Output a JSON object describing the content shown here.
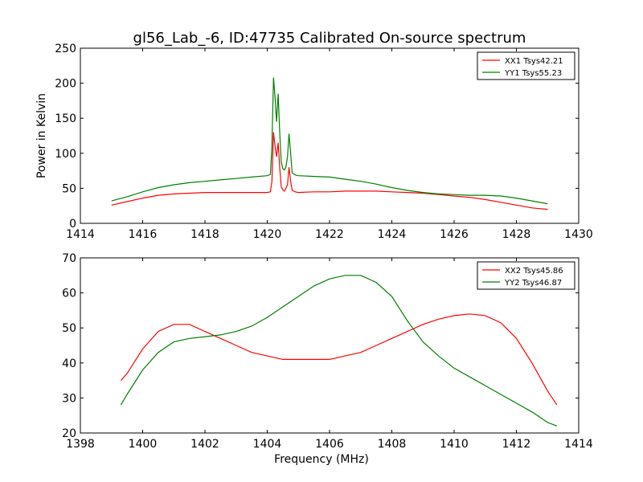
{
  "figure": {
    "title": "gl56_Lab_-6, ID:47735 Calibrated On-source spectrum"
  },
  "chart_data": [
    {
      "type": "line",
      "title": "gl56_Lab_-6, ID:47735 Calibrated On-source spectrum",
      "xlabel": "",
      "ylabel": "Power in Kelvin",
      "xlim": [
        1414,
        1430
      ],
      "ylim": [
        0,
        250
      ],
      "xticks": [
        1414,
        1416,
        1418,
        1420,
        1422,
        1424,
        1426,
        1428,
        1430
      ],
      "yticks": [
        0,
        50,
        100,
        150,
        200,
        250
      ],
      "grid": false,
      "legend": "top-right",
      "series": [
        {
          "name": "XX1 Tsys42.21",
          "color": "#ff0000",
          "x": [
            1415.0,
            1415.5,
            1416.0,
            1416.5,
            1417.0,
            1417.5,
            1418.0,
            1418.5,
            1419.0,
            1419.5,
            1420.0,
            1420.1,
            1420.15,
            1420.2,
            1420.25,
            1420.3,
            1420.35,
            1420.4,
            1420.45,
            1420.5,
            1420.55,
            1420.6,
            1420.65,
            1420.7,
            1420.75,
            1420.8,
            1420.9,
            1421.0,
            1421.5,
            1422.0,
            1422.5,
            1423.0,
            1423.5,
            1424.0,
            1424.5,
            1425.0,
            1425.5,
            1426.0,
            1426.5,
            1427.0,
            1427.5,
            1428.0,
            1428.5,
            1429.0
          ],
          "y": [
            26,
            31,
            36,
            40,
            42,
            43,
            44,
            44,
            44,
            44,
            44,
            45,
            60,
            130,
            110,
            95,
            115,
            80,
            52,
            48,
            46,
            50,
            55,
            80,
            60,
            47,
            45,
            44,
            45,
            45,
            46,
            46,
            46,
            45,
            44,
            43,
            41,
            39,
            37,
            34,
            30,
            26,
            22,
            20
          ]
        },
        {
          "name": "YY1 Tsys55.23",
          "color": "#008000",
          "x": [
            1415.0,
            1415.5,
            1416.0,
            1416.5,
            1417.0,
            1417.5,
            1418.0,
            1418.5,
            1419.0,
            1419.5,
            1420.0,
            1420.1,
            1420.15,
            1420.2,
            1420.25,
            1420.3,
            1420.35,
            1420.4,
            1420.45,
            1420.5,
            1420.55,
            1420.6,
            1420.65,
            1420.7,
            1420.75,
            1420.8,
            1420.9,
            1421.0,
            1421.5,
            1422.0,
            1422.5,
            1423.0,
            1423.5,
            1424.0,
            1424.5,
            1425.0,
            1425.5,
            1426.0,
            1426.5,
            1427.0,
            1427.5,
            1428.0,
            1428.5,
            1429.0
          ],
          "y": [
            32,
            38,
            45,
            51,
            55,
            58,
            60,
            62,
            64,
            66,
            68,
            70,
            110,
            208,
            180,
            145,
            185,
            130,
            88,
            78,
            76,
            80,
            95,
            128,
            100,
            72,
            69,
            68,
            67,
            66,
            63,
            60,
            56,
            51,
            47,
            44,
            42,
            41,
            40,
            40,
            39,
            36,
            32,
            28
          ]
        }
      ]
    },
    {
      "type": "line",
      "title": "",
      "xlabel": "Frequency (MHz)",
      "ylabel": "",
      "xlim": [
        1398,
        1414
      ],
      "ylim": [
        20,
        70
      ],
      "xticks": [
        1398,
        1400,
        1402,
        1404,
        1406,
        1408,
        1410,
        1412,
        1414
      ],
      "yticks": [
        20,
        30,
        40,
        50,
        60,
        70
      ],
      "grid": false,
      "legend": "top-right",
      "series": [
        {
          "name": "XX2 Tsys45.86",
          "color": "#ff0000",
          "x": [
            1399.3,
            1399.5,
            1400.0,
            1400.5,
            1401.0,
            1401.5,
            1402.0,
            1402.5,
            1403.0,
            1403.5,
            1404.0,
            1404.5,
            1405.0,
            1405.5,
            1406.0,
            1406.5,
            1407.0,
            1407.5,
            1408.0,
            1408.5,
            1409.0,
            1409.5,
            1410.0,
            1410.5,
            1411.0,
            1411.5,
            1412.0,
            1412.5,
            1413.0,
            1413.3
          ],
          "y": [
            35,
            37,
            44,
            49,
            51,
            51,
            49,
            47,
            45,
            43,
            42,
            41,
            41,
            41,
            41,
            42,
            43,
            45,
            47,
            49,
            51,
            52.5,
            53.5,
            54,
            53.5,
            51.5,
            47,
            40,
            32,
            28
          ]
        },
        {
          "name": "YY2 Tsys46.87",
          "color": "#008000",
          "x": [
            1399.3,
            1399.5,
            1400.0,
            1400.5,
            1401.0,
            1401.5,
            1402.0,
            1402.5,
            1403.0,
            1403.5,
            1404.0,
            1404.5,
            1405.0,
            1405.5,
            1406.0,
            1406.5,
            1407.0,
            1407.5,
            1408.0,
            1408.5,
            1409.0,
            1409.5,
            1410.0,
            1410.5,
            1411.0,
            1411.5,
            1412.0,
            1412.5,
            1413.0,
            1413.3
          ],
          "y": [
            28,
            31,
            38,
            43,
            46,
            47,
            47.5,
            48,
            49,
            50.5,
            53,
            56,
            59,
            62,
            64,
            65,
            65,
            63,
            59,
            52,
            46,
            42,
            38.5,
            36,
            33.5,
            31,
            28.5,
            26,
            23,
            22
          ]
        }
      ]
    }
  ]
}
